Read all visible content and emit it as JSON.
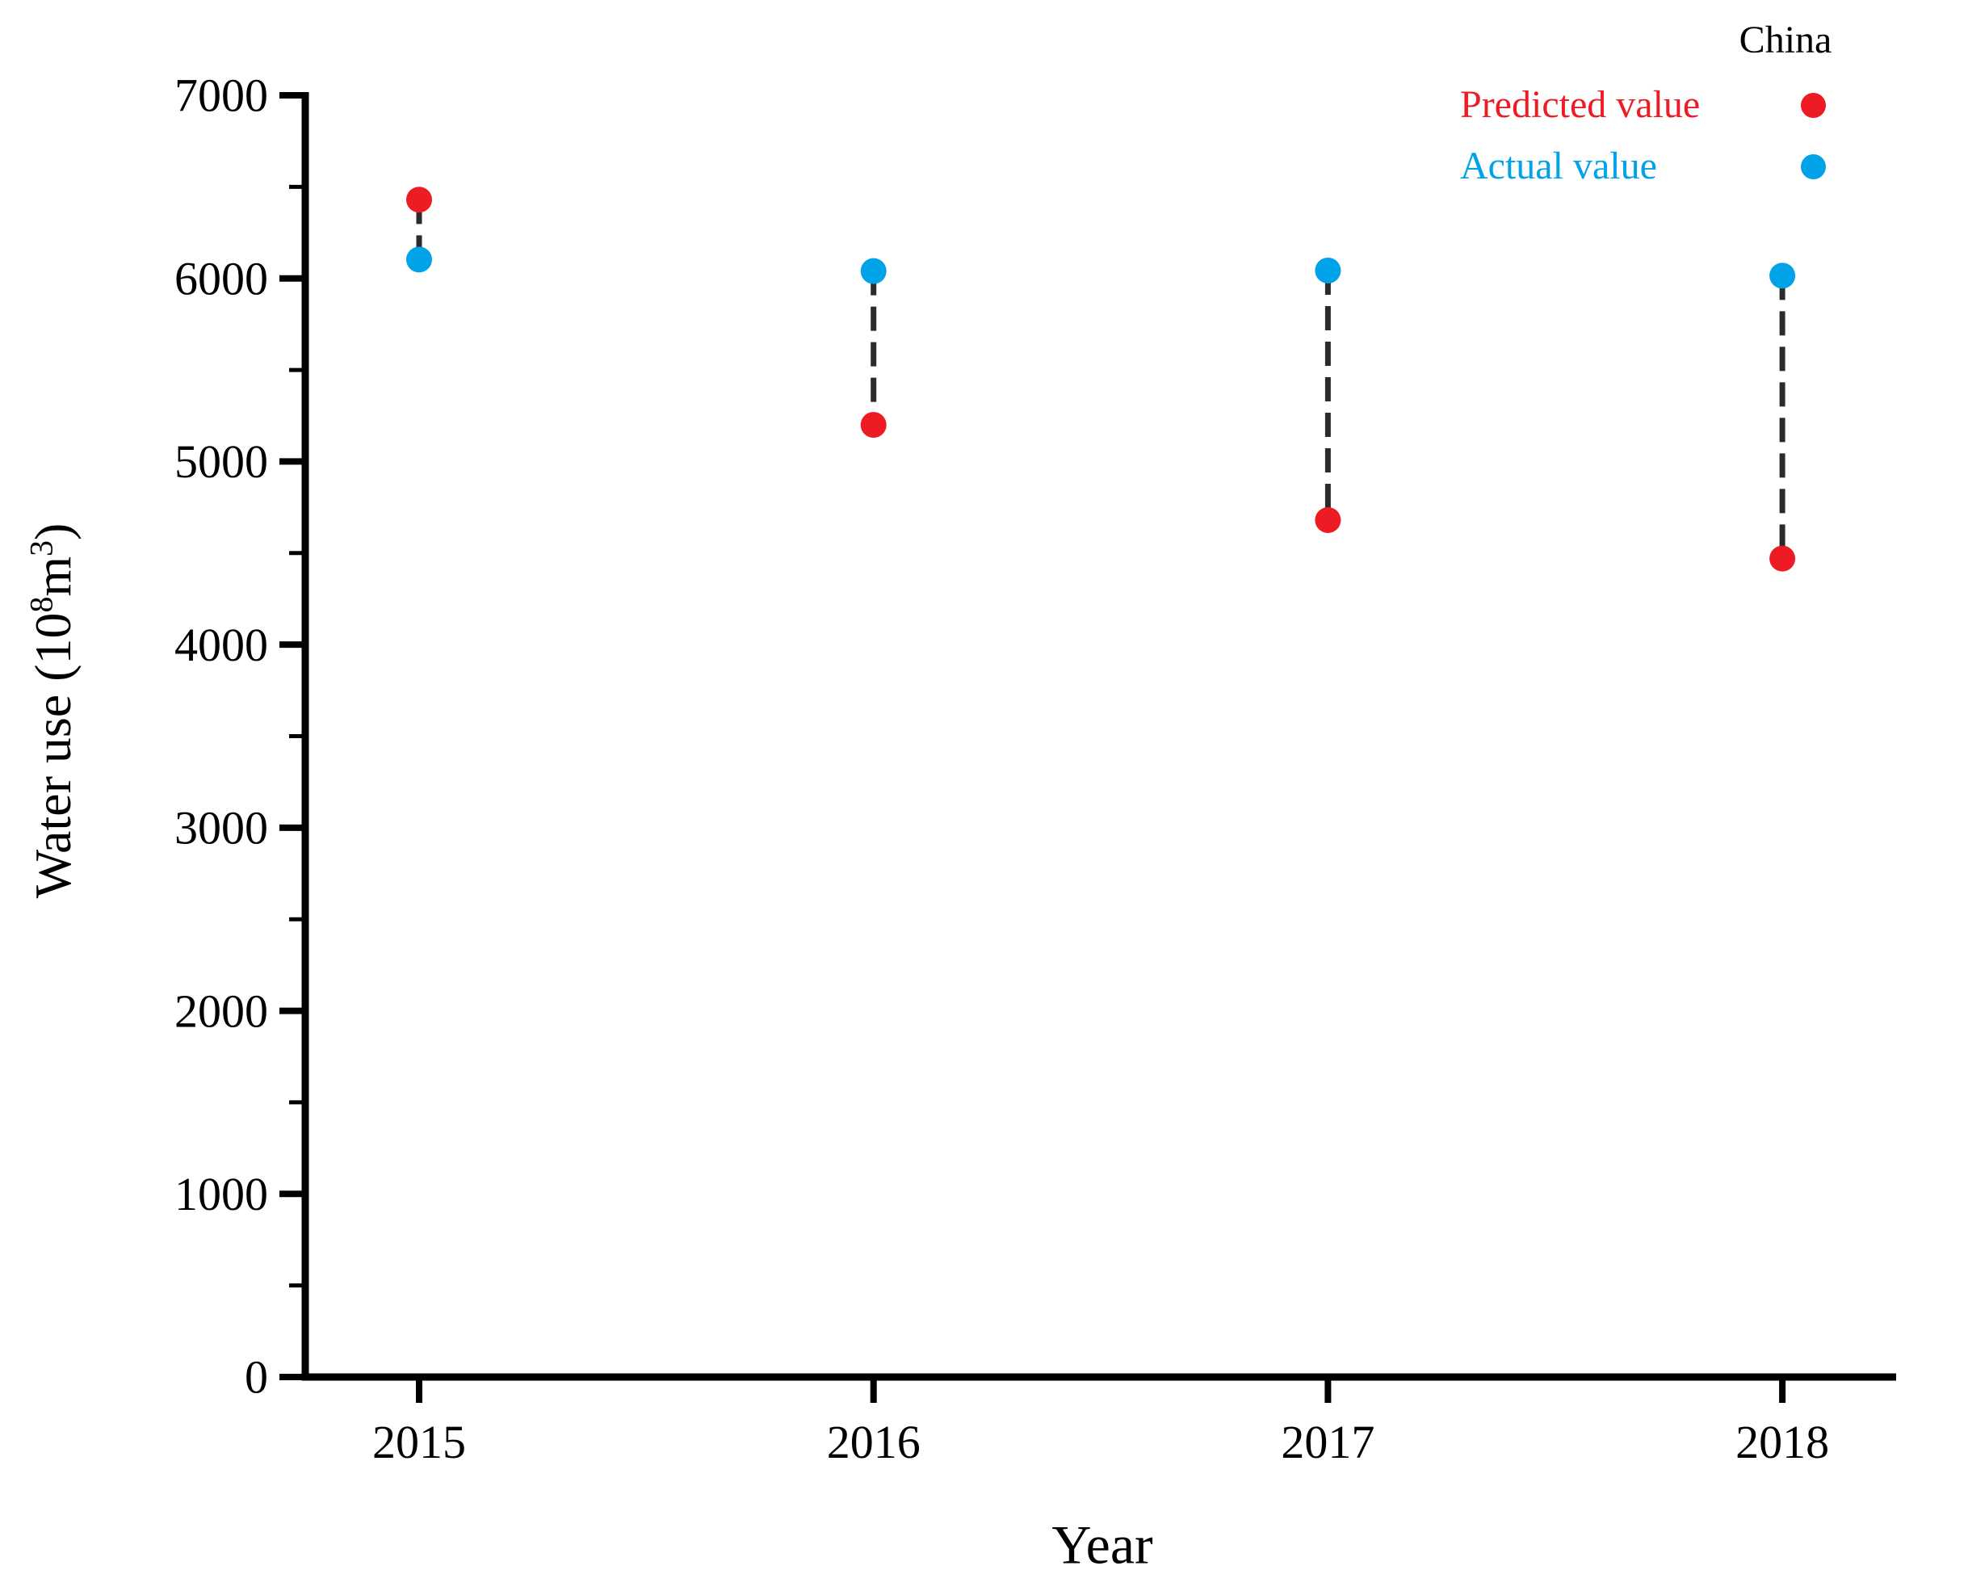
{
  "chart_data": {
    "type": "scatter",
    "title": "",
    "xlabel": "Year",
    "ylabel": "Water use (10⁸m³)",
    "ylabel_parts": [
      {
        "t": "Water use (10",
        "sup": false
      },
      {
        "t": "8",
        "sup": true
      },
      {
        "t": "m",
        "sup": false
      },
      {
        "t": "3",
        "sup": true
      },
      {
        "t": ")",
        "sup": false
      }
    ],
    "x": [
      "2015",
      "2016",
      "2017",
      "2018"
    ],
    "series": [
      {
        "name": "Predicted value",
        "color": "#ED1C24",
        "marker": "circle",
        "values": [
          6430,
          5200,
          4680,
          4470
        ]
      },
      {
        "name": "Actual value",
        "color": "#00A2E8",
        "marker": "circle",
        "values": [
          6103,
          6040,
          6043,
          6015
        ]
      }
    ],
    "connectors": {
      "style": "dashed",
      "color": "#2b2b2b",
      "between": [
        "Predicted value",
        "Actual value"
      ]
    },
    "ylim": [
      0,
      7000
    ],
    "ytick_step": 1000,
    "ytick_minor_step": 500,
    "yticks": [
      "0",
      "1000",
      "2000",
      "3000",
      "4000",
      "5000",
      "6000",
      "7000"
    ],
    "grid": false,
    "legend": {
      "title": "China",
      "position": "top-right",
      "entries": [
        "Predicted value",
        "Actual value"
      ]
    },
    "axis_color": "#000000",
    "text_color": "#000000"
  }
}
